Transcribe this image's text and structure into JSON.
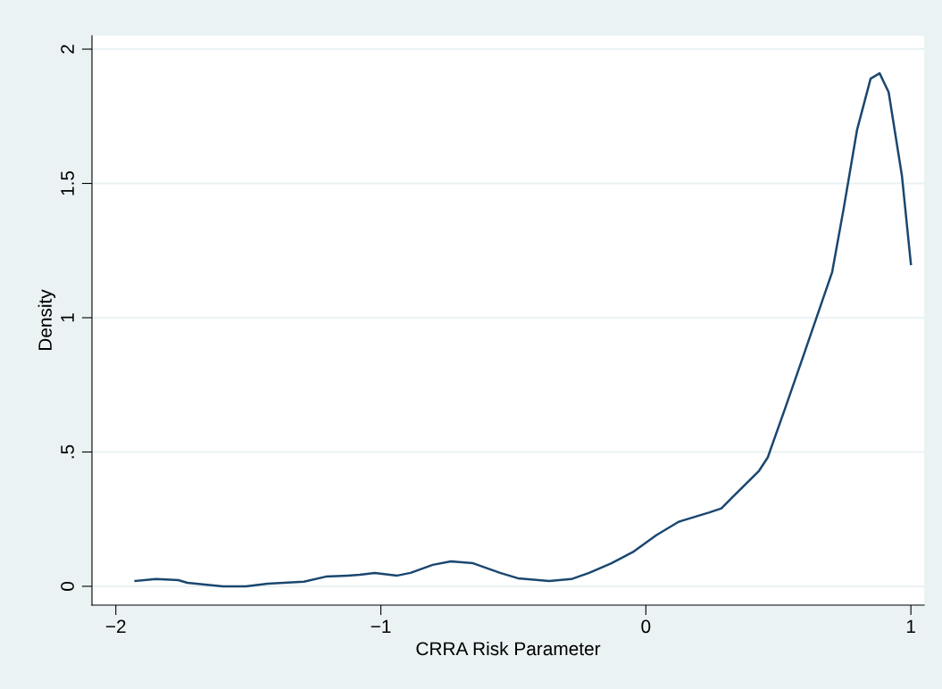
{
  "chart_data": {
    "type": "line",
    "xlabel": "CRRA Risk Parameter",
    "ylabel": "Density",
    "series": [
      {
        "color": "#1a476f",
        "x": [
          -1.926,
          -1.848,
          -1.764,
          -1.73,
          -1.63,
          -1.596,
          -1.51,
          -1.427,
          -1.29,
          -1.208,
          -1.124,
          -1.08,
          -1.023,
          -0.938,
          -0.888,
          -0.804,
          -0.736,
          -0.652,
          -0.55,
          -0.483,
          -0.365,
          -0.281,
          -0.214,
          -0.13,
          -0.045,
          0.039,
          0.123,
          0.24,
          0.285,
          0.325,
          0.427,
          0.46,
          0.528,
          0.595,
          0.663,
          0.703,
          0.747,
          0.797,
          0.848,
          0.882,
          0.916,
          0.966,
          1.0
        ],
        "values": [
          0.02,
          0.027,
          0.023,
          0.013,
          0.003,
          0,
          0,
          0.01,
          0.017,
          0.036,
          0.04,
          0.043,
          0.05,
          0.04,
          0.05,
          0.08,
          0.093,
          0.086,
          0.05,
          0.03,
          0.02,
          0.027,
          0.05,
          0.086,
          0.13,
          0.19,
          0.24,
          0.275,
          0.29,
          0.33,
          0.43,
          0.48,
          0.67,
          0.86,
          1.055,
          1.17,
          1.41,
          1.7,
          1.89,
          1.91,
          1.84,
          1.53,
          1.2
        ]
      }
    ],
    "xlim": [
      -2.09,
      1.05
    ],
    "ylim": [
      -0.07,
      2.05
    ],
    "xticks": [
      {
        "value": -2,
        "label": "−2"
      },
      {
        "value": -1,
        "label": "−1"
      },
      0,
      1
    ],
    "yticks": [
      0,
      {
        "value": 0.5,
        "label": ".5"
      },
      1,
      {
        "value": 1.5,
        "label": "1.5"
      },
      2
    ],
    "grid": "y",
    "legend": false,
    "marker": "none",
    "line_style": "solid"
  }
}
